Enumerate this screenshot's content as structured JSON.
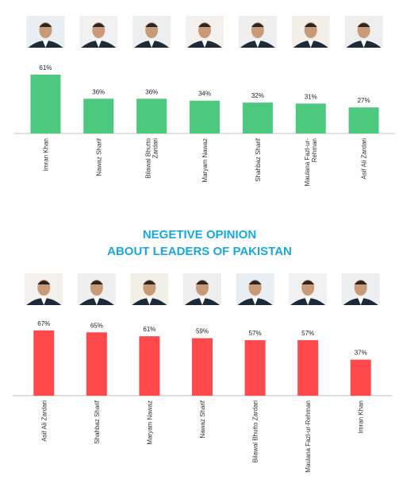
{
  "chart_data": [
    {
      "type": "bar",
      "title": "",
      "categories": [
        "Imran Khan",
        "Nawaz Sharif",
        "Bilawal Bhutto Zardari",
        "Maryam Nawaz",
        "Shahbaz Sharif",
        "Maulana Fazl-ur-Rehman",
        "Asif Ali Zardari"
      ],
      "tick_lines": [
        [
          "Imran Khan"
        ],
        [
          "Nawaz Sharif"
        ],
        [
          "Bilawal Bhutto",
          "Zardari"
        ],
        [
          "Maryam Nawaz"
        ],
        [
          "Shahbaz Sharif"
        ],
        [
          "Maulana Fazl-ur-",
          "Rehman"
        ],
        [
          "Asif Ali Zardari"
        ]
      ],
      "values": [
        61,
        36,
        36,
        34,
        32,
        31,
        27
      ],
      "data_labels": [
        "61%",
        "36%",
        "36%",
        "34%",
        "32%",
        "31%",
        "27%"
      ],
      "unit": "%",
      "ylim": [
        0,
        70
      ],
      "color": "#4cc97f",
      "grid": false,
      "legend": "none"
    },
    {
      "type": "bar",
      "title": "NEGETIVE OPINION ABOUT LEADERS OF PAKISTAN",
      "title_lines": [
        "NEGETIVE OPINION",
        "ABOUT LEADERS OF PAKISTAN"
      ],
      "categories": [
        "Asif Ali Zardari",
        "Shahbaz Sharif",
        "Maryam Nawaz",
        "Nawaz Sharif",
        "Bilawal Bhutto Zardari",
        "Maulana Fazl-ur-Rehman",
        "Imran Khan"
      ],
      "tick_lines": [
        [
          "Asif Ali Zardari"
        ],
        [
          "Shahbaz Sharif"
        ],
        [
          "Maryam Nawaz"
        ],
        [
          "Nawaz Sharif"
        ],
        [
          "Bilawal Bhutto Zardari"
        ],
        [
          "Maulana Fazl-ur-Rehman"
        ],
        [
          "Imran Khan"
        ]
      ],
      "values": [
        67,
        65,
        61,
        59,
        57,
        57,
        37
      ],
      "data_labels": [
        "67%",
        "65%",
        "61%",
        "59%",
        "57%",
        "57%",
        "37%"
      ],
      "unit": "%",
      "ylim": [
        0,
        75
      ],
      "color": "#ff4a4d",
      "title_color": "#1aa7e0",
      "grid": false,
      "legend": "none"
    }
  ]
}
